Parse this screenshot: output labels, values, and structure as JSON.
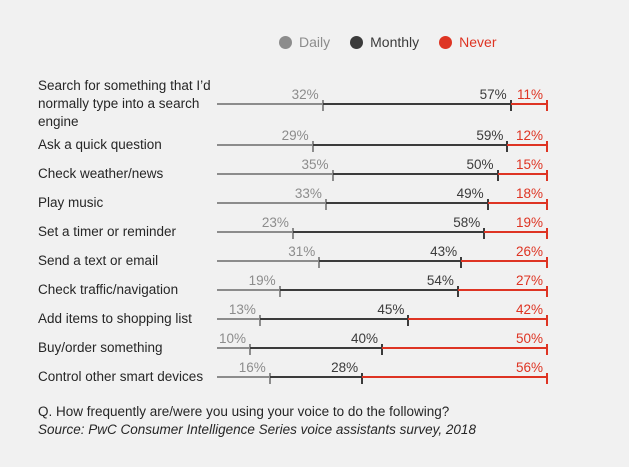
{
  "legend": {
    "items": [
      {
        "label": "Daily",
        "color": "#8c8c8c"
      },
      {
        "label": "Monthly",
        "color": "#3b3b3b"
      },
      {
        "label": "Never",
        "color": "#de3423"
      }
    ]
  },
  "chart_data": {
    "type": "stacked_bar",
    "orientation": "horizontal",
    "unit": "%",
    "xlim": [
      0,
      100
    ],
    "legend_position": "top",
    "grid": false,
    "note": "Each row rendered as a cumulative line with tick marks; values per row sum to 100%",
    "categories": [
      "Search for something that I’d normally type into a search engine",
      "Ask a quick question",
      "Check weather/news",
      "Play music",
      "Set a timer or reminder",
      "Send a text or email",
      "Check traffic/navigation",
      "Add items to shopping list",
      "Buy/order something",
      "Control other smart devices"
    ],
    "series": [
      {
        "name": "Daily",
        "color": "#8c8c8c",
        "values": [
          32,
          29,
          35,
          33,
          23,
          31,
          19,
          13,
          10,
          16
        ]
      },
      {
        "name": "Monthly",
        "color": "#3b3b3b",
        "values": [
          57,
          59,
          50,
          49,
          58,
          43,
          54,
          45,
          40,
          28
        ]
      },
      {
        "name": "Never",
        "color": "#de3423",
        "values": [
          11,
          12,
          15,
          18,
          19,
          26,
          27,
          42,
          50,
          56
        ]
      }
    ]
  },
  "footer": {
    "question": "Q. How frequently are/were you using your voice to do the following?",
    "source": "Source: PwC Consumer Intelligence Series voice assistants survey, 2018"
  }
}
